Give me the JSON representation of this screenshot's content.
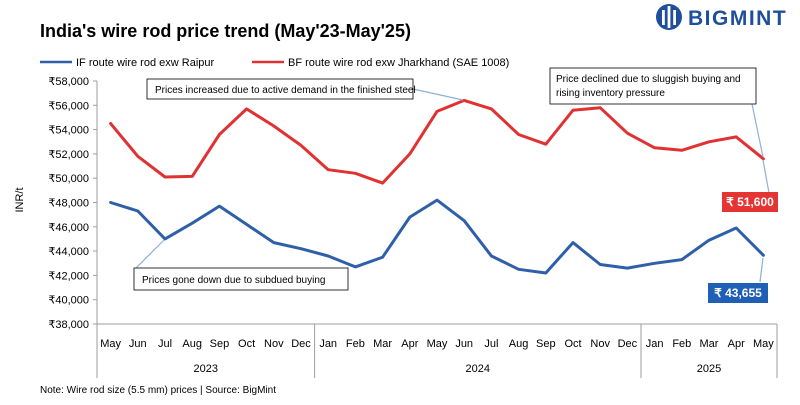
{
  "header": {
    "title": "India's wire rod price trend (May'23-May'25)",
    "brand_name": "BIGMINT",
    "brand_color": "#1f4e9c"
  },
  "footer": {
    "note": "Note: Wire rod size (5.5 mm) prices  | Source: BigMint"
  },
  "chart_data": {
    "type": "line",
    "ylabel": "INR/t",
    "ylim": [
      38000,
      58000
    ],
    "ystep": 2000,
    "y_tick_labels": [
      "₹38,000",
      "₹40,000",
      "₹42,000",
      "₹44,000",
      "₹46,000",
      "₹48,000",
      "₹50,000",
      "₹52,000",
      "₹54,000",
      "₹56,000",
      "₹58,000"
    ],
    "grid": false,
    "legend_position": "top-left",
    "categories": [
      "May",
      "Jun",
      "Jul",
      "Aug",
      "Sep",
      "Oct",
      "Nov",
      "Dec",
      "Jan",
      "Feb",
      "Mar",
      "Apr",
      "May",
      "Jun",
      "Jul",
      "Aug",
      "Sep",
      "Oct",
      "Nov",
      "Dec",
      "Jan",
      "Feb",
      "Mar",
      "Apr",
      "May"
    ],
    "year_groups": [
      {
        "label": "2023",
        "from": 0,
        "to": 7
      },
      {
        "label": "2024",
        "from": 8,
        "to": 19
      },
      {
        "label": "2025",
        "from": 20,
        "to": 24
      }
    ],
    "series": [
      {
        "name": "IF route wire rod exw Raipur",
        "color": "#2e5fa8",
        "values": [
          48000,
          47300,
          45000,
          46300,
          47700,
          46200,
          44700,
          44200,
          43600,
          42700,
          43500,
          46800,
          48200,
          46500,
          43600,
          42500,
          42200,
          44700,
          42900,
          42600,
          43000,
          43300,
          44900,
          45900,
          43655
        ],
        "end_label": "₹ 43,655"
      },
      {
        "name": "BF route wire rod exw Jharkhand (SAE 1008)",
        "color": "#e03232",
        "values": [
          54500,
          51800,
          50100,
          50150,
          53600,
          55700,
          54300,
          52700,
          50700,
          50400,
          49600,
          52000,
          55500,
          56400,
          55700,
          53600,
          52800,
          55600,
          55800,
          53700,
          52500,
          52300,
          53000,
          53400,
          51600
        ],
        "end_label": "₹ 51,600"
      }
    ],
    "annotations": [
      {
        "text": "Prices increased due to active demand in the finished steel"
      },
      {
        "lines": [
          "Price declined due to sluggish buying and",
          "rising inventory pressure"
        ]
      },
      {
        "text": "Prices gone down due to subdued buying"
      }
    ]
  }
}
